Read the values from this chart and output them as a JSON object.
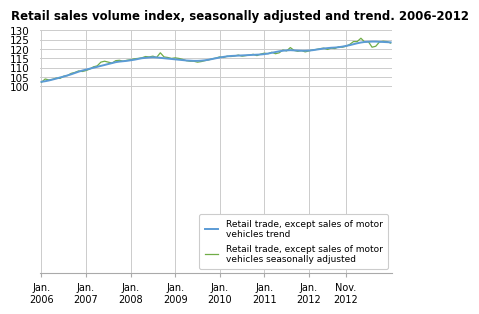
{
  "title": "Retail sales volume index, seasonally adjusted and trend. 2006-2012",
  "ylim": [
    0,
    130
  ],
  "yticks": [
    0,
    100,
    105,
    110,
    115,
    120,
    125,
    130
  ],
  "background_color": "#ffffff",
  "grid_color": "#cccccc",
  "trend_color": "#5b9bd5",
  "seasonal_color": "#70ad47",
  "trend_label": "Retail trade, except sales of motor\nvehicles trend",
  "seasonal_label": "Retail trade, except sales of motor\nvehicles seasonally adjusted",
  "xtick_labels": [
    "Jan.\n2006",
    "Jan.\n2007",
    "Jan.\n2008",
    "Jan.\n2009",
    "Jan.\n2010",
    "Jan.\n2011",
    "Jan.\n2012",
    "Nov.\n2012"
  ],
  "trend_data": [
    102.5,
    102.8,
    103.2,
    103.7,
    104.2,
    104.8,
    105.3,
    105.9,
    106.5,
    107.2,
    107.9,
    108.5,
    109.0,
    109.5,
    110.0,
    110.5,
    111.0,
    111.5,
    112.0,
    112.5,
    113.0,
    113.3,
    113.5,
    113.7,
    114.0,
    114.3,
    114.7,
    115.1,
    115.3,
    115.5,
    115.6,
    115.5,
    115.3,
    115.1,
    114.9,
    114.7,
    114.5,
    114.3,
    114.1,
    113.9,
    113.8,
    113.7,
    113.7,
    113.8,
    114.0,
    114.3,
    114.7,
    115.1,
    115.5,
    115.8,
    116.1,
    116.3,
    116.4,
    116.5,
    116.6,
    116.7,
    116.8,
    116.9,
    117.0,
    117.1,
    117.3,
    117.6,
    118.0,
    118.4,
    118.8,
    119.1,
    119.3,
    119.4,
    119.3,
    119.2,
    119.1,
    119.1,
    119.2,
    119.4,
    119.7,
    120.0,
    120.3,
    120.5,
    120.7,
    120.8,
    121.0,
    121.3,
    121.7,
    122.1,
    122.6,
    123.1,
    123.5,
    123.8,
    123.9,
    124.0,
    124.0,
    123.9,
    123.8,
    123.7,
    123.6
  ],
  "seasonal_data": [
    102.2,
    104.0,
    103.5,
    103.8,
    104.5,
    104.3,
    105.5,
    105.8,
    107.0,
    107.5,
    108.3,
    108.0,
    108.5,
    109.3,
    110.5,
    111.0,
    113.0,
    113.5,
    113.0,
    112.5,
    113.8,
    114.0,
    113.5,
    114.0,
    114.3,
    114.8,
    115.0,
    115.3,
    116.0,
    115.8,
    116.2,
    115.5,
    118.0,
    115.8,
    115.5,
    115.0,
    115.3,
    115.0,
    114.5,
    113.8,
    113.5,
    113.5,
    113.0,
    113.3,
    113.8,
    114.2,
    114.8,
    115.2,
    115.8,
    115.5,
    116.2,
    116.0,
    116.3,
    116.8,
    116.2,
    116.5,
    116.8,
    117.2,
    116.5,
    117.3,
    117.8,
    117.5,
    118.3,
    117.5,
    118.0,
    119.5,
    119.0,
    120.8,
    119.3,
    118.8,
    119.2,
    118.5,
    119.0,
    119.5,
    119.8,
    120.2,
    120.5,
    119.8,
    120.5,
    120.3,
    121.2,
    121.0,
    121.5,
    122.5,
    124.0,
    124.0,
    125.8,
    123.8,
    124.0,
    121.0,
    121.5,
    123.8,
    124.2,
    124.0,
    123.2
  ]
}
